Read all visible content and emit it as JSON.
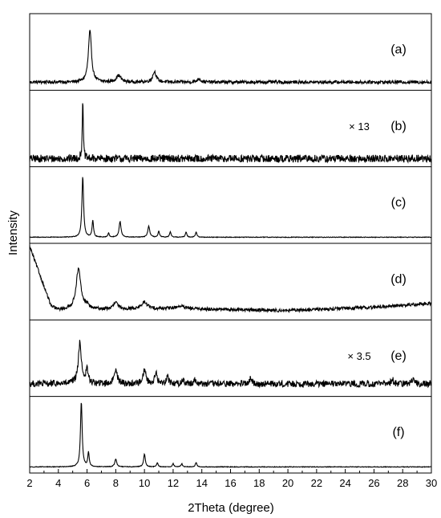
{
  "chart_data": {
    "type": "line",
    "xlabel": "2Theta (degree)",
    "ylabel": "Intensity",
    "xlim": [
      2,
      30
    ],
    "x_ticks": [
      "2",
      "4",
      "6",
      "8",
      "10",
      "12",
      "14",
      "16",
      "18",
      "20",
      "22",
      "24",
      "26",
      "28",
      "30"
    ],
    "series": [
      {
        "name": "(a)",
        "scale_label": "",
        "noise": 0.025,
        "baseline": [
          [
            2,
            0.05
          ],
          [
            30,
            0.05
          ]
        ],
        "peaks": [
          [
            6.2,
            0.78,
            0.13
          ],
          [
            8.2,
            0.1,
            0.2
          ],
          [
            10.7,
            0.16,
            0.15
          ],
          [
            13.8,
            0.05,
            0.15
          ]
        ]
      },
      {
        "name": "(b)",
        "scale_label": "× 13",
        "noise": 0.06,
        "baseline": [
          [
            2,
            0.05
          ],
          [
            30,
            0.05
          ]
        ],
        "peaks": [
          [
            5.7,
            0.95,
            0.04
          ]
        ]
      },
      {
        "name": "(c)",
        "scale_label": "",
        "noise": 0.005,
        "baseline": [
          [
            2,
            0.02
          ],
          [
            30,
            0.02
          ]
        ],
        "peaks": [
          [
            5.7,
            0.93,
            0.07
          ],
          [
            6.4,
            0.25,
            0.06
          ],
          [
            7.5,
            0.06,
            0.06
          ],
          [
            8.3,
            0.24,
            0.08
          ],
          [
            10.3,
            0.17,
            0.08
          ],
          [
            11.0,
            0.09,
            0.06
          ],
          [
            11.8,
            0.08,
            0.06
          ],
          [
            12.9,
            0.08,
            0.06
          ],
          [
            13.6,
            0.08,
            0.06
          ]
        ]
      },
      {
        "name": "(d)",
        "scale_label": "",
        "noise": 0.025,
        "baseline": [
          [
            2,
            1.05
          ],
          [
            3.5,
            0.13
          ],
          [
            4,
            0.08
          ],
          [
            12,
            0.1
          ],
          [
            20,
            0.07
          ],
          [
            26,
            0.12
          ],
          [
            30,
            0.18
          ]
        ],
        "peaks": [
          [
            5.4,
            0.62,
            0.2
          ],
          [
            6.0,
            0.06,
            0.12
          ],
          [
            8.0,
            0.1,
            0.18
          ],
          [
            10.0,
            0.1,
            0.25
          ],
          [
            12.5,
            0.04,
            0.3
          ]
        ]
      },
      {
        "name": "(e)",
        "scale_label": "× 3.5",
        "noise": 0.05,
        "baseline": [
          [
            2,
            0.12
          ],
          [
            30,
            0.12
          ]
        ],
        "peaks": [
          [
            5.5,
            0.62,
            0.13
          ],
          [
            6.0,
            0.2,
            0.1
          ],
          [
            8.0,
            0.24,
            0.12
          ],
          [
            10.0,
            0.22,
            0.12
          ],
          [
            10.8,
            0.16,
            0.1
          ],
          [
            11.6,
            0.12,
            0.1
          ],
          [
            12.7,
            0.06,
            0.1
          ],
          [
            13.5,
            0.06,
            0.1
          ],
          [
            17.4,
            0.08,
            0.08
          ],
          [
            27.3,
            0.07,
            0.1
          ],
          [
            28.7,
            0.07,
            0.1
          ]
        ]
      },
      {
        "name": "(f)",
        "scale_label": "",
        "noise": 0.005,
        "baseline": [
          [
            2,
            0.02
          ],
          [
            30,
            0.02
          ]
        ],
        "peaks": [
          [
            5.6,
            1.0,
            0.07
          ],
          [
            6.1,
            0.22,
            0.06
          ],
          [
            8.0,
            0.12,
            0.08
          ],
          [
            10.0,
            0.2,
            0.07
          ],
          [
            10.9,
            0.06,
            0.06
          ],
          [
            12.0,
            0.05,
            0.06
          ],
          [
            12.6,
            0.05,
            0.06
          ],
          [
            13.6,
            0.07,
            0.06
          ]
        ]
      }
    ]
  }
}
